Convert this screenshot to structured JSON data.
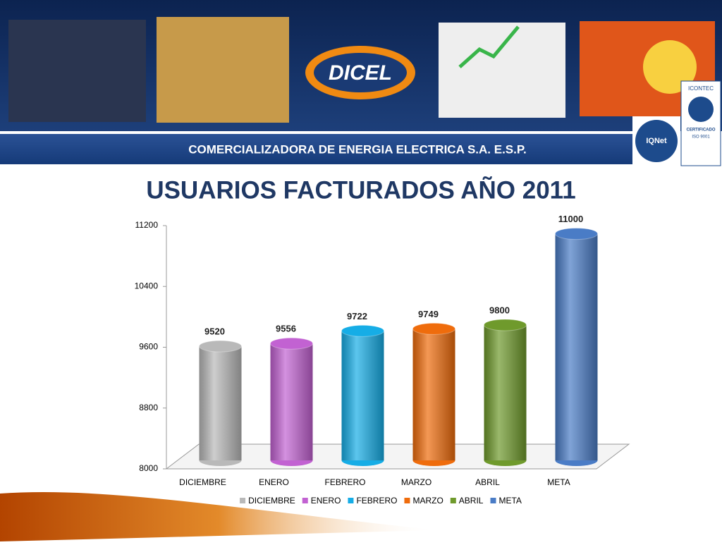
{
  "header": {
    "logo": "DICEL",
    "company": "COMERCIALIZADORA DE ENERGIA ELECTRICA S.A. E.S.P.",
    "badges": [
      "ICONTEC",
      "CERTIFICADO",
      "ISO 9001",
      "IQNet"
    ]
  },
  "chart_data": {
    "type": "bar",
    "title": "USUARIOS FACTURADOS AÑO 2011",
    "categories": [
      "DICIEMBRE",
      "ENERO",
      "FEBRERO",
      "MARZO",
      "ABRIL",
      "META"
    ],
    "values": [
      9520,
      9556,
      9722,
      9749,
      9800,
      11000
    ],
    "colors": [
      "#b9b9b9",
      "#c262d2",
      "#16ade6",
      "#ef6c0c",
      "#6f9a2c",
      "#4a7cc6"
    ],
    "ylim": [
      8000,
      11200
    ],
    "yticks": [
      8000,
      8800,
      9600,
      10400,
      11200
    ],
    "legend": "bottom"
  }
}
